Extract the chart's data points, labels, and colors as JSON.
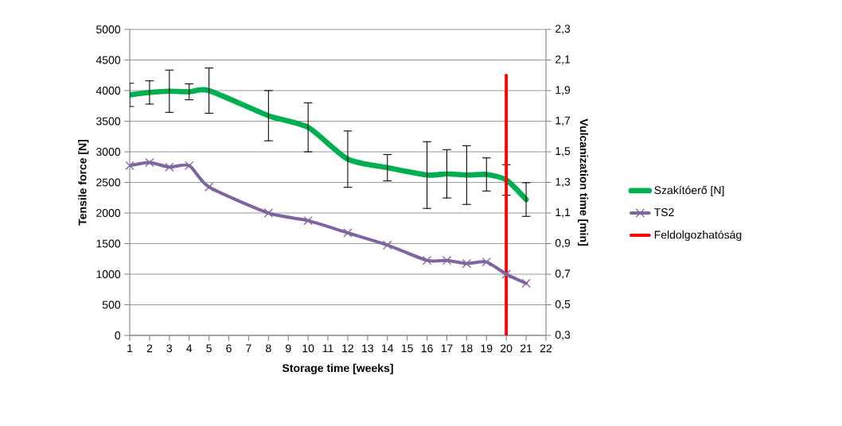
{
  "chart_data": {
    "type": "line",
    "xlabel": "Storage time [weeks]",
    "ylabel": "Tensile force [N]",
    "y2label": "Vulcanization time [min]",
    "xlim": [
      1,
      22
    ],
    "xticks": [
      1,
      2,
      3,
      4,
      5,
      6,
      7,
      8,
      9,
      10,
      11,
      12,
      13,
      14,
      15,
      16,
      17,
      18,
      19,
      20,
      21,
      22
    ],
    "ylim": [
      0,
      5000
    ],
    "yticks": [
      0,
      500,
      1000,
      1500,
      2000,
      2500,
      3000,
      3500,
      4000,
      4500,
      5000
    ],
    "y2lim": [
      0.3,
      2.3
    ],
    "y2ticks": [
      {
        "value": 0.3,
        "label": "0,3"
      },
      {
        "value": 0.5,
        "label": "0,5"
      },
      {
        "value": 0.7,
        "label": "0,7"
      },
      {
        "value": 0.9,
        "label": "0,9"
      },
      {
        "value": 1.1,
        "label": "1,1"
      },
      {
        "value": 1.3,
        "label": "1,3"
      },
      {
        "value": 1.5,
        "label": "1,5"
      },
      {
        "value": 1.7,
        "label": "1,7"
      },
      {
        "value": 1.9,
        "label": "1,9"
      },
      {
        "value": 2.1,
        "label": "2,1"
      },
      {
        "value": 2.3,
        "label": "2,3"
      }
    ],
    "grid": "y",
    "legend": "right",
    "series": [
      {
        "name": "Szakítóerő [N]",
        "color": "#00b050",
        "marker": "none",
        "x": [
          1,
          2,
          3,
          4,
          5,
          8,
          10,
          12,
          14,
          16,
          17,
          18,
          19,
          20,
          21
        ],
        "values": [
          3930,
          3970,
          3990,
          3980,
          4000,
          3590,
          3400,
          2880,
          2740,
          2620,
          2640,
          2620,
          2630,
          2540,
          2220
        ],
        "errors": [
          190,
          190,
          345,
          130,
          370,
          410,
          400,
          460,
          215,
          545,
          395,
          480,
          270,
          250,
          275
        ]
      },
      {
        "name": "TS2",
        "color": "#8064a2",
        "marker": "cross",
        "axis": "y2",
        "x": [
          1,
          2,
          3,
          4,
          5,
          8,
          10,
          12,
          14,
          16,
          17,
          18,
          19,
          20,
          21
        ],
        "values": [
          1.41,
          1.43,
          1.4,
          1.41,
          1.27,
          1.1,
          1.05,
          0.97,
          0.89,
          0.79,
          0.79,
          0.77,
          0.78,
          0.7,
          0.64
        ]
      },
      {
        "name": "Feldolgozhatóság",
        "color": "#ff0000",
        "marker": "none",
        "x": [
          20,
          20
        ],
        "values": [
          0,
          4250
        ]
      }
    ]
  }
}
